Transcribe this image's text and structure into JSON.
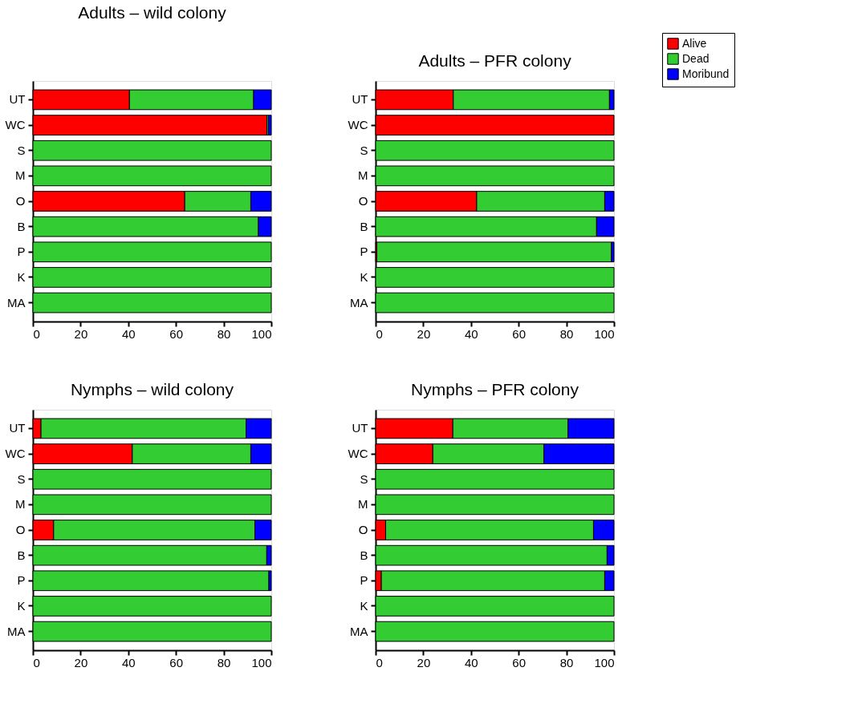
{
  "chart_data": [
    {
      "type": "bar",
      "title": "Adults – wild colony",
      "orientation": "horizontal",
      "stacked": true,
      "categories": [
        "UT",
        "WC",
        "S",
        "M",
        "O",
        "B",
        "P",
        "K",
        "MA"
      ],
      "xlim": [
        0,
        100
      ],
      "xticks": [
        0,
        20,
        40,
        60,
        80,
        100
      ],
      "grid": false,
      "legend": "top right",
      "series": [
        {
          "name": "Alive",
          "color": "#ff0000",
          "values": [
            40.5,
            98.2,
            null,
            null,
            63.7,
            null,
            null,
            null,
            null
          ]
        },
        {
          "name": "Dead",
          "color": "#33cc33",
          "values": [
            52.1,
            0.6,
            100,
            100,
            27.7,
            94.6,
            100,
            100,
            100
          ]
        },
        {
          "name": "Moribund",
          "color": "#0000ff",
          "values": [
            7.4,
            1.2,
            null,
            null,
            8.6,
            5.4,
            null,
            null,
            null
          ]
        }
      ]
    },
    {
      "type": "bar",
      "title": "Adults – PFR colony",
      "orientation": "horizontal",
      "stacked": true,
      "categories": [
        "UT",
        "WC",
        "S",
        "M",
        "O",
        "B",
        "P",
        "K",
        "MA"
      ],
      "xlim": [
        0,
        100
      ],
      "xticks": [
        0,
        20,
        40,
        60,
        80,
        100
      ],
      "grid": false,
      "series": [
        {
          "color": "#ff0000",
          "values": [
            32.6,
            100,
            null,
            null,
            42.4,
            null,
            0.5,
            null,
            null
          ]
        },
        {
          "color": "#33cc33",
          "values": [
            65.5,
            null,
            100,
            100,
            53.7,
            92.7,
            98.4,
            100,
            100
          ]
        },
        {
          "color": "#0000ff",
          "values": [
            1.9,
            null,
            null,
            null,
            3.9,
            7.3,
            1.1,
            null,
            null
          ]
        }
      ]
    },
    {
      "type": "bar",
      "title": "Nymphs – wild colony",
      "orientation": "horizontal",
      "stacked": true,
      "categories": [
        "UT",
        "WC",
        "S",
        "M",
        "O",
        "B",
        "P",
        "K",
        "MA"
      ],
      "xlim": [
        0,
        100
      ],
      "xticks": [
        0,
        20,
        40,
        60,
        80,
        100
      ],
      "grid": false,
      "series": [
        {
          "color": "#ff0000",
          "values": [
            3.4,
            41.7,
            null,
            null,
            8.7,
            null,
            null,
            null,
            null
          ]
        },
        {
          "color": "#33cc33",
          "values": [
            86.0,
            49.7,
            100,
            100,
            84.4,
            98.1,
            99.0,
            100,
            100
          ]
        },
        {
          "color": "#0000ff",
          "values": [
            10.6,
            8.6,
            null,
            null,
            6.9,
            1.9,
            1.0,
            null,
            null
          ]
        }
      ]
    },
    {
      "type": "bar",
      "title": "Nymphs – PFR colony",
      "orientation": "horizontal",
      "stacked": true,
      "categories": [
        "UT",
        "WC",
        "S",
        "M",
        "O",
        "B",
        "P",
        "K",
        "MA"
      ],
      "xlim": [
        0,
        100
      ],
      "xticks": [
        0,
        20,
        40,
        60,
        80,
        100
      ],
      "grid": false,
      "series": [
        {
          "color": "#ff0000",
          "values": [
            32.4,
            24.0,
            null,
            null,
            4.2,
            null,
            2.4,
            null,
            null
          ]
        },
        {
          "color": "#33cc33",
          "values": [
            48.3,
            46.6,
            100,
            100,
            87.2,
            97.1,
            93.7,
            100,
            100
          ]
        },
        {
          "color": "#0000ff",
          "values": [
            19.3,
            29.4,
            null,
            null,
            8.6,
            2.9,
            3.9,
            null,
            null
          ]
        }
      ]
    }
  ]
}
